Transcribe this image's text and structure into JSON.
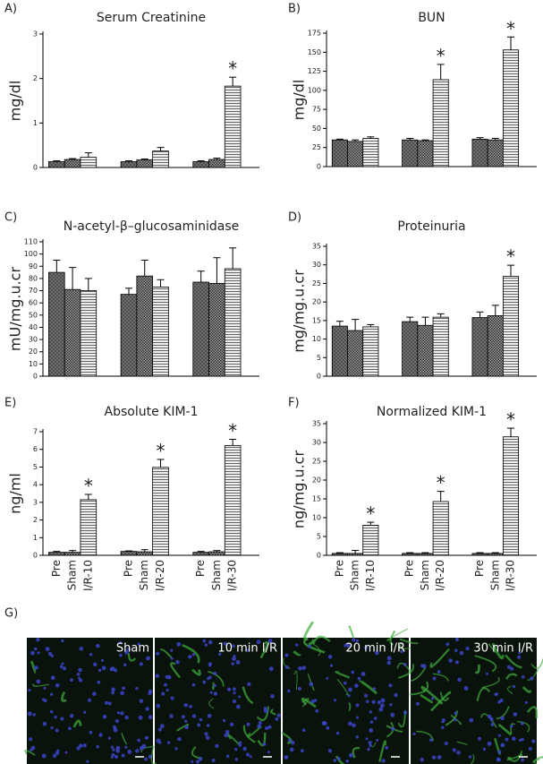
{
  "chart_data": [
    {
      "type": "bar",
      "panel": "A)",
      "title": "Serum Creatinine",
      "ylabel": "mg/dl",
      "categories": [
        null,
        null,
        null,
        null,
        null,
        null,
        null,
        null,
        null
      ],
      "values": [
        0.13,
        0.18,
        0.23,
        0.13,
        0.17,
        0.37,
        0.13,
        0.18,
        1.83
      ],
      "errors": [
        0.02,
        0.02,
        0.1,
        0.02,
        0.02,
        0.08,
        0.02,
        0.03,
        0.2
      ],
      "significance": [
        null,
        null,
        null,
        null,
        null,
        null,
        null,
        null,
        "*"
      ],
      "ylim": [
        0,
        3
      ],
      "yticks": [
        0,
        1,
        2,
        3
      ]
    },
    {
      "type": "bar",
      "panel": "B)",
      "title": "BUN",
      "ylabel": "mg/dl",
      "categories": [
        null,
        null,
        null,
        null,
        null,
        null,
        null,
        null,
        null
      ],
      "values": [
        35,
        33,
        37,
        35,
        34,
        114,
        36,
        35,
        153
      ],
      "errors": [
        1,
        2,
        2,
        2,
        1,
        20,
        2,
        2,
        17
      ],
      "significance": [
        null,
        null,
        null,
        null,
        null,
        "*",
        null,
        null,
        "*"
      ],
      "ylim": [
        0,
        175
      ],
      "yticks": [
        0,
        25,
        50,
        75,
        100,
        125,
        150,
        175
      ]
    },
    {
      "type": "bar",
      "panel": "C)",
      "title": "N-acetyl-β–glucosaminidase",
      "ylabel": "mU/mg.u.cr",
      "categories": [
        null,
        null,
        null,
        null,
        null,
        null,
        null,
        null,
        null
      ],
      "values": [
        85,
        71,
        70,
        67,
        82,
        73,
        77,
        76,
        88
      ],
      "errors": [
        10,
        18,
        10,
        5,
        13,
        6,
        9,
        21,
        17
      ],
      "significance": [
        null,
        null,
        null,
        null,
        null,
        null,
        null,
        null,
        null
      ],
      "ylim": [
        0,
        110
      ],
      "yticks": [
        0,
        10,
        20,
        30,
        40,
        50,
        60,
        70,
        80,
        90,
        100,
        110
      ]
    },
    {
      "type": "bar",
      "panel": "D)",
      "title": "Proteinuria",
      "ylabel": "mg/mg.u.cr",
      "categories": [
        null,
        null,
        null,
        null,
        null,
        null,
        null,
        null,
        null
      ],
      "values": [
        13.5,
        12.3,
        13.3,
        14.7,
        13.7,
        15.9,
        15.8,
        16.3,
        26.9
      ],
      "errors": [
        1.3,
        3,
        0.6,
        1.2,
        2.2,
        0.9,
        1.5,
        2.8,
        3
      ],
      "significance": [
        null,
        null,
        null,
        null,
        null,
        null,
        null,
        null,
        "*"
      ],
      "ylim": [
        0,
        35
      ],
      "yticks": [
        0,
        5,
        10,
        15,
        20,
        25,
        30,
        35
      ]
    },
    {
      "type": "bar",
      "panel": "E)",
      "title": "Absolute KIM-1",
      "ylabel": "ng/ml",
      "categories": [
        "Pre",
        "Sham",
        "I/R-10",
        "Pre",
        "Sham",
        "I/R-20",
        "Pre",
        "Sham",
        "I/R-30"
      ],
      "values": [
        0.17,
        0.17,
        3.15,
        0.22,
        0.2,
        4.98,
        0.17,
        0.2,
        6.22
      ],
      "errors": [
        0.05,
        0.1,
        0.3,
        0.03,
        0.12,
        0.45,
        0.05,
        0.07,
        0.35
      ],
      "significance": [
        null,
        null,
        "*",
        null,
        null,
        "*",
        null,
        null,
        "*"
      ],
      "ylim": [
        0,
        7
      ],
      "yticks": [
        0,
        1,
        2,
        3,
        4,
        5,
        6,
        7
      ]
    },
    {
      "type": "bar",
      "panel": "F)",
      "title": "Normalized KIM-1",
      "ylabel": "ng/mg.u.cr",
      "categories": [
        "Pre",
        "Sham",
        "I/R-10",
        "Pre",
        "Sham",
        "I/R-20",
        "Pre",
        "Sham",
        "I/R-30"
      ],
      "values": [
        0.5,
        0.5,
        8,
        0.5,
        0.5,
        14.3,
        0.5,
        0.5,
        31.5
      ],
      "errors": [
        0.2,
        0.8,
        0.8,
        0.2,
        0.2,
        2.7,
        0.2,
        0.2,
        2.3
      ],
      "significance": [
        null,
        null,
        "*",
        null,
        null,
        "*",
        null,
        null,
        "*"
      ],
      "ylim": [
        0,
        35
      ],
      "yticks": [
        0,
        5,
        10,
        15,
        20,
        25,
        30,
        35
      ]
    }
  ],
  "panel_g": {
    "label": "G)",
    "images": [
      "Sham",
      "10 min I/R",
      "20 min I/R",
      "30 min I/R"
    ]
  }
}
